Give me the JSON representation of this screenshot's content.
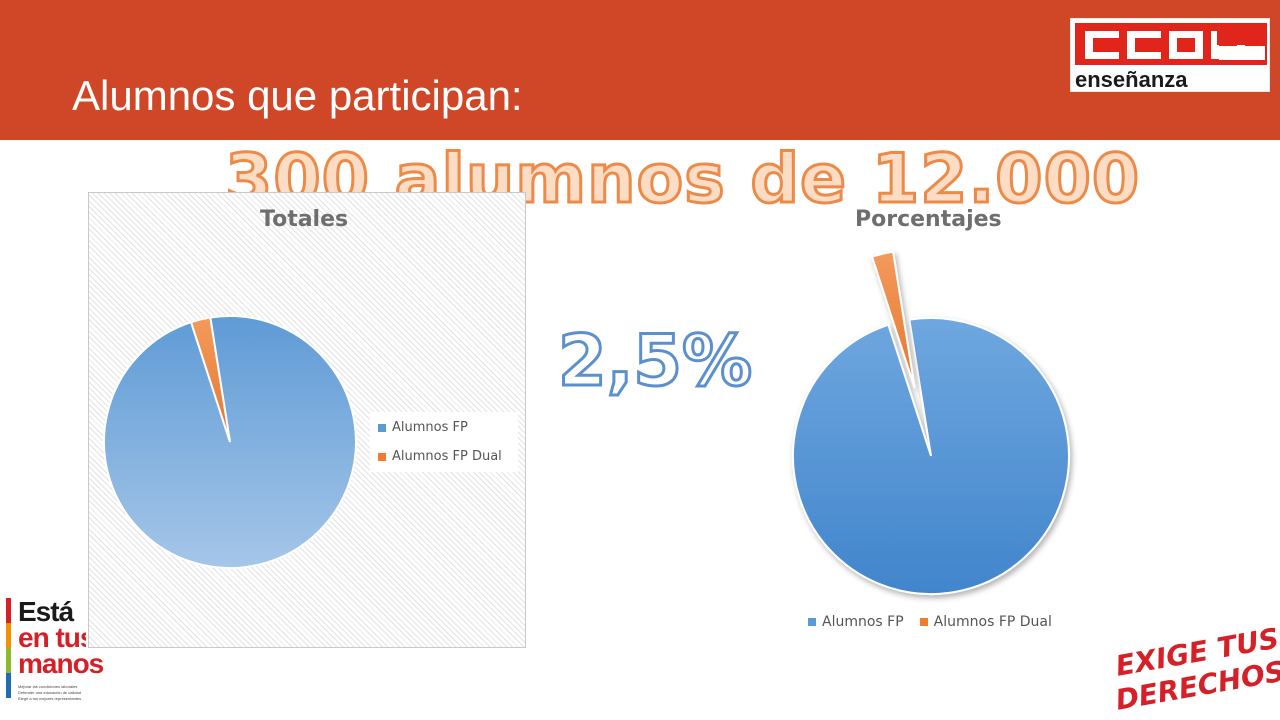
{
  "header": {
    "title": "Alumnos que participan:",
    "background": "#d04727"
  },
  "logo": {
    "brand": "CCOO",
    "subtitle": "enseñanza"
  },
  "headline": "300 alumnos de 12.000",
  "percent_label": "2,5%",
  "colors": {
    "alumnos_fp": "#5b9bd5",
    "alumnos_fp_dual": "#ed7d31"
  },
  "chart_data": [
    {
      "type": "pie",
      "title": "Totales",
      "labels": [
        "Alumnos FP",
        "Alumnos FP Dual"
      ],
      "values": [
        11700,
        300
      ],
      "legend": "right"
    },
    {
      "type": "pie",
      "title": "Porcentajes",
      "labels": [
        "Alumnos FP",
        "Alumnos FP Dual"
      ],
      "values": [
        97.5,
        2.5
      ],
      "exploded": "Alumnos FP Dual",
      "legend": "bottom"
    }
  ],
  "campaign": {
    "line1": "Está",
    "line2": "en tus",
    "line3": "manos",
    "bullets": [
      "Mejorar las condiciones laborales",
      "Defender una educación de calidad",
      "Elegir a tus mejores representantes"
    ]
  },
  "slogan": {
    "line1": "EXIGE TUS",
    "line2": "DERECHOS"
  }
}
